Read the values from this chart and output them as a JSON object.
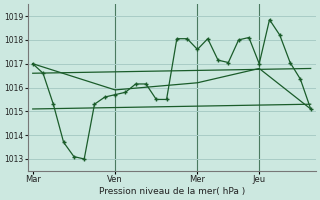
{
  "bg_color": "#cce8e0",
  "grid_color": "#a8ccc6",
  "line_color": "#1a5c2a",
  "vert_line_color": "#4a7a60",
  "title": "Pression niveau de la mer( hPa )",
  "yticks": [
    1013,
    1014,
    1015,
    1016,
    1017,
    1018,
    1019
  ],
  "ylim": [
    1012.5,
    1019.5
  ],
  "day_labels": [
    "Mar",
    "Ven",
    "Mer",
    "Jeu"
  ],
  "day_positions": [
    0,
    8,
    16,
    22
  ],
  "xlim": [
    -0.5,
    27.5
  ],
  "total_points": 28,
  "line1_x": [
    0,
    1,
    2,
    3,
    4,
    5,
    6,
    7,
    8,
    9,
    10,
    11,
    12,
    13,
    14,
    15,
    16,
    17,
    18,
    19,
    20,
    21,
    22,
    23,
    24,
    25,
    26,
    27
  ],
  "line1_y": [
    1017.0,
    1016.6,
    1015.3,
    1013.7,
    1013.1,
    1013.0,
    1015.3,
    1015.6,
    1015.7,
    1015.8,
    1016.15,
    1016.15,
    1015.5,
    1015.5,
    1018.05,
    1018.05,
    1017.6,
    1018.05,
    1017.15,
    1017.05,
    1018.0,
    1018.1,
    1017.0,
    1018.85,
    1018.2,
    1017.05,
    1016.35,
    1015.1
  ],
  "line2_x": [
    0,
    8,
    16,
    22,
    27
  ],
  "line2_y": [
    1017.0,
    1015.9,
    1016.2,
    1016.8,
    1015.1
  ],
  "line3_x": [
    0,
    27
  ],
  "line3_y": [
    1016.6,
    1016.8
  ],
  "line4_x": [
    0,
    27
  ],
  "line4_y": [
    1015.1,
    1015.3
  ]
}
